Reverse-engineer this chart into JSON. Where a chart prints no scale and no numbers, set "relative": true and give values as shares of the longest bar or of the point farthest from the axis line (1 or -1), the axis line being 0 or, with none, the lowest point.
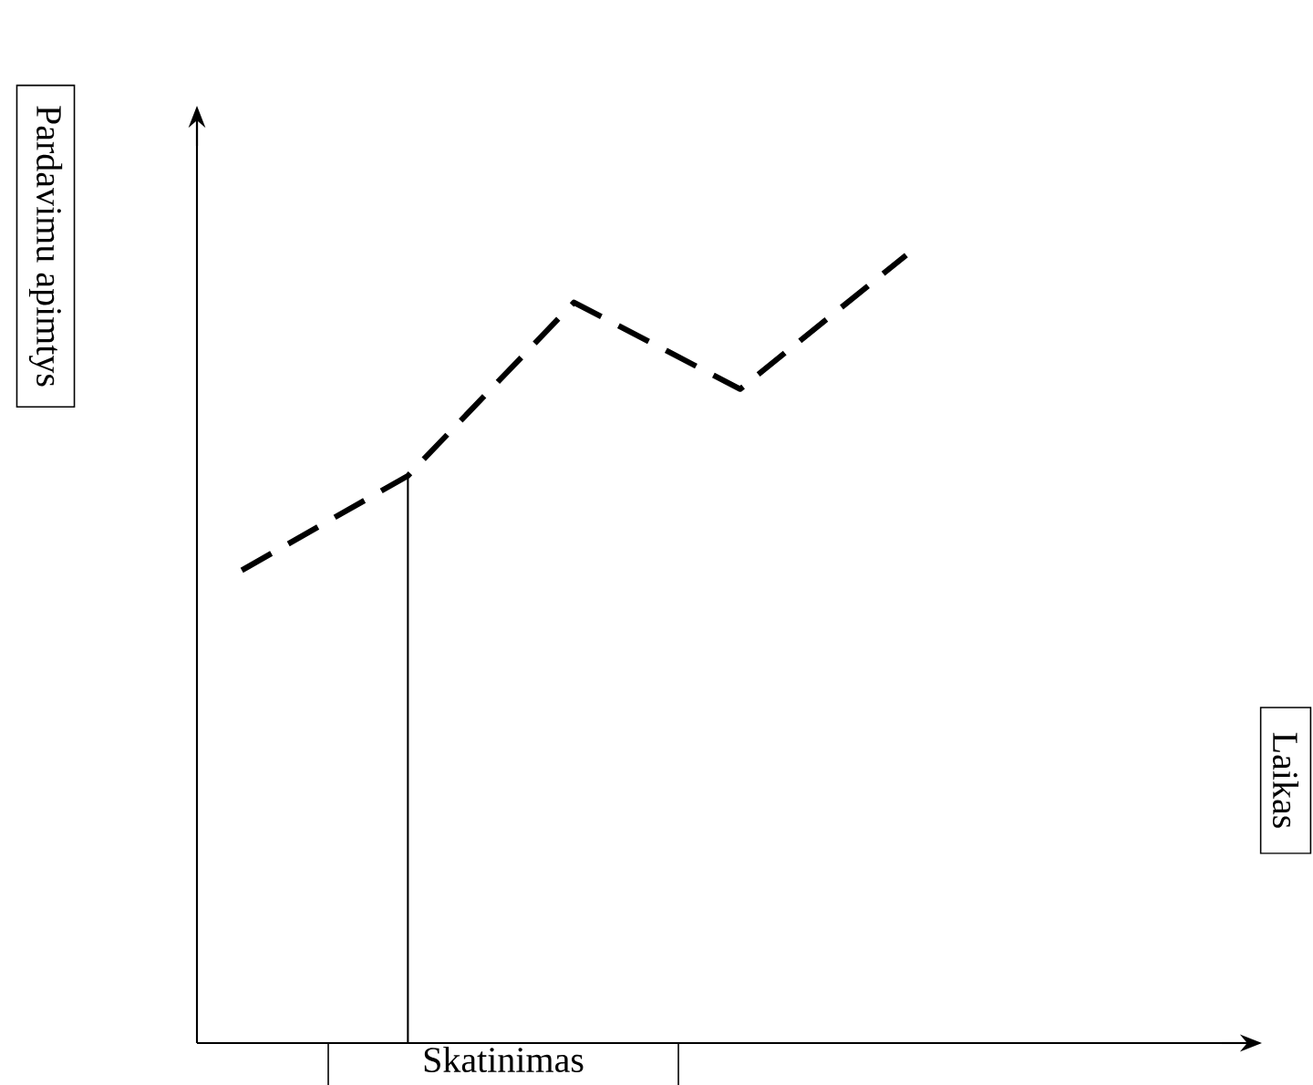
{
  "chart_data": {
    "type": "line",
    "relative": true,
    "ylabel": "Pardavimu apimtys",
    "categories": [
      null,
      null,
      null,
      null,
      null
    ],
    "series": [
      {
        "color": "#000000",
        "values": [
          0.6,
          0.72,
          0.94,
          0.83,
          1.0
        ]
      }
    ],
    "line_style": "dashed",
    "marker": "none",
    "annotations": [
      "Laikas",
      "Skatinimas"
    ]
  }
}
